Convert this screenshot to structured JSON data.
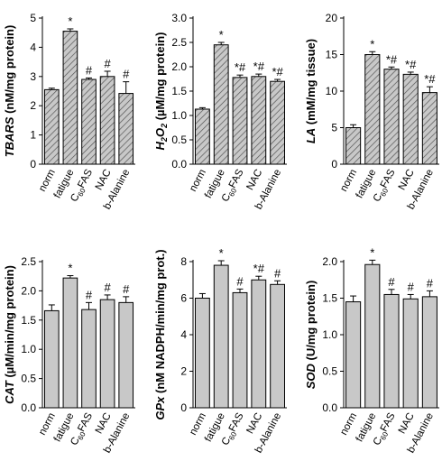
{
  "colors": {
    "bar_fill": "#c8c8c8",
    "hatch_line": "#555555",
    "axis": "#000000"
  },
  "category_labels": [
    "norm",
    "fatigue",
    "C60FAS",
    "NAC",
    "b-Alanine"
  ],
  "chart_data": [
    {
      "id": "tbars",
      "type": "bar",
      "hatched": true,
      "ylabel": {
        "bold_italic": "TBARS",
        "rest": " (nM/mg protein)"
      },
      "ylim": [
        0,
        5
      ],
      "yticks": [
        0,
        1,
        2,
        3,
        4,
        5
      ],
      "tick_decimals": 0,
      "categories": [
        "norm",
        "fatigue",
        "C60FAS",
        "NAC",
        "b-Alanine"
      ],
      "values": [
        2.55,
        4.55,
        2.9,
        3.0,
        2.42
      ],
      "errors": [
        0.05,
        0.08,
        0.05,
        0.18,
        0.4
      ],
      "annotations": [
        "",
        "*",
        "#",
        "#",
        "#"
      ]
    },
    {
      "id": "h2o2",
      "type": "bar",
      "hatched": true,
      "ylabel": {
        "bold_italic": "H2O2",
        "rest": " (µM/mg protein)"
      },
      "ylim": [
        0,
        3.0
      ],
      "yticks": [
        0,
        0.5,
        1.0,
        1.5,
        2.0,
        2.5,
        3.0
      ],
      "tick_decimals": 1,
      "categories": [
        "norm",
        "fatigue",
        "C60FAS",
        "NAC",
        "b-Alanine"
      ],
      "values": [
        1.13,
        2.45,
        1.78,
        1.8,
        1.7
      ],
      "errors": [
        0.03,
        0.05,
        0.05,
        0.05,
        0.04
      ],
      "annotations": [
        "",
        "*",
        "*#",
        "*#",
        "*#"
      ]
    },
    {
      "id": "la",
      "type": "bar",
      "hatched": true,
      "ylabel": {
        "bold_italic": "LA",
        "rest": " (mM/mg tissue)"
      },
      "ylim": [
        0,
        20
      ],
      "yticks": [
        0,
        5,
        10,
        15,
        20
      ],
      "tick_decimals": 0,
      "categories": [
        "norm",
        "fatigue",
        "C60FAS",
        "NAC",
        "b-Alanine"
      ],
      "values": [
        5.0,
        15.0,
        13.0,
        12.3,
        9.8
      ],
      "errors": [
        0.4,
        0.4,
        0.3,
        0.3,
        0.8
      ],
      "annotations": [
        "",
        "*",
        "*#",
        "*#",
        "*#"
      ]
    },
    {
      "id": "cat",
      "type": "bar",
      "hatched": false,
      "ylabel": {
        "bold_italic": "CAT",
        "rest": " (µM/min/mg protein)"
      },
      "ylim": [
        0,
        2.5
      ],
      "yticks": [
        0,
        0.5,
        1.0,
        1.5,
        2.0,
        2.5
      ],
      "tick_decimals": 1,
      "categories": [
        "norm",
        "fatigue",
        "C60FAS",
        "NAC",
        "b-Alanine"
      ],
      "values": [
        1.66,
        2.22,
        1.68,
        1.85,
        1.8
      ],
      "errors": [
        0.1,
        0.04,
        0.12,
        0.08,
        0.1
      ],
      "annotations": [
        "",
        "*",
        "#",
        "#",
        "#"
      ]
    },
    {
      "id": "gpx",
      "type": "bar",
      "hatched": false,
      "ylabel": {
        "bold_italic": "GPx",
        "rest": " (nM NADPH/min/mg prot.)"
      },
      "ylim": [
        0,
        8
      ],
      "yticks": [
        0,
        2,
        4,
        6,
        8
      ],
      "tick_decimals": 0,
      "categories": [
        "norm",
        "fatigue",
        "C60FAS",
        "NAC",
        "b-Alanine"
      ],
      "values": [
        6.0,
        7.8,
        6.3,
        7.0,
        6.75
      ],
      "errors": [
        0.25,
        0.25,
        0.2,
        0.2,
        0.2
      ],
      "annotations": [
        "",
        "*",
        "#",
        "*#",
        "#"
      ]
    },
    {
      "id": "sod",
      "type": "bar",
      "hatched": false,
      "ylabel": {
        "bold_italic": "SOD",
        "rest": " (U/mg  protein)"
      },
      "ylim": [
        0,
        2.0
      ],
      "yticks": [
        0,
        0.5,
        1.0,
        1.5,
        2.0
      ],
      "tick_decimals": 1,
      "categories": [
        "norm",
        "fatigue",
        "C60FAS",
        "NAC",
        "b-Alanine"
      ],
      "values": [
        1.45,
        1.96,
        1.55,
        1.49,
        1.52
      ],
      "errors": [
        0.08,
        0.06,
        0.07,
        0.06,
        0.08
      ],
      "annotations": [
        "",
        "*",
        "#",
        "#",
        "#"
      ]
    }
  ]
}
